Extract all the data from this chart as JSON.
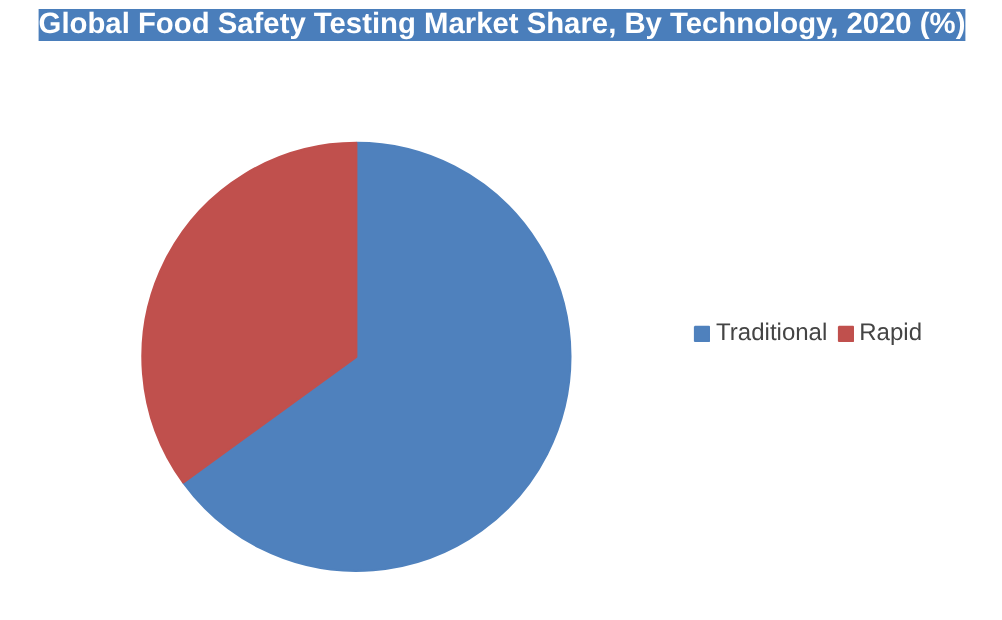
{
  "chart_data": {
    "type": "pie",
    "title": "Global Food Safety Testing Market Share, By Technology, 2020 (%)",
    "categories": [
      "Traditional",
      "Rapid"
    ],
    "values": [
      65,
      35
    ],
    "colors": [
      "#4f81bd",
      "#c0504d"
    ],
    "legend": "right"
  }
}
